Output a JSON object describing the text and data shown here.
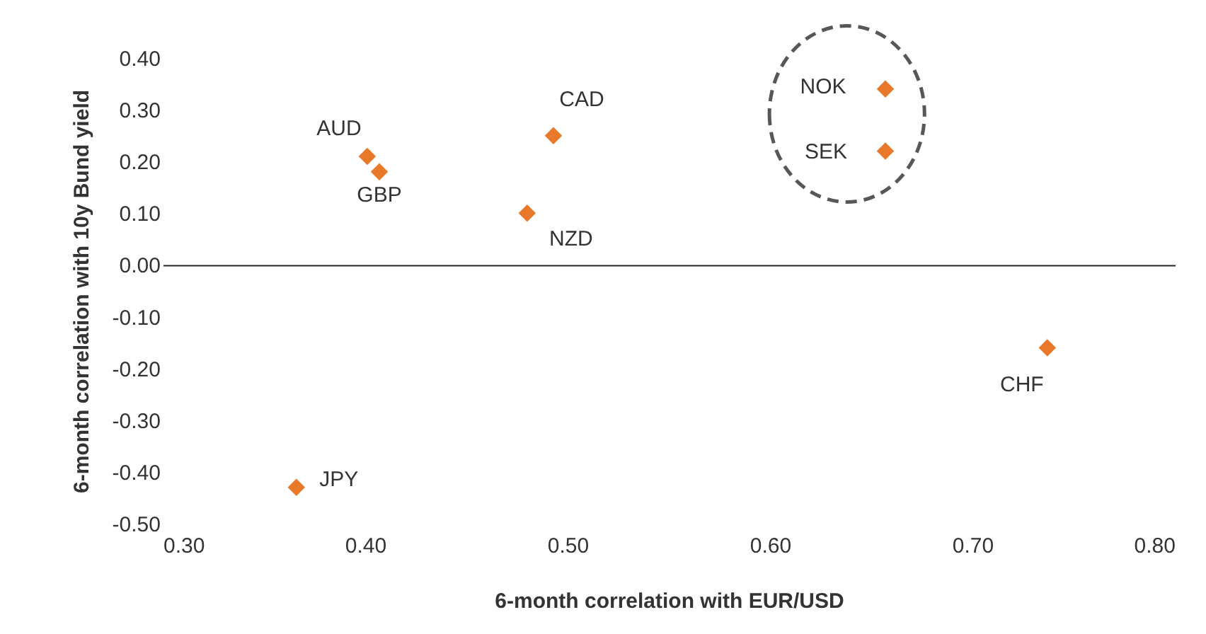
{
  "chart_data": {
    "type": "scatter",
    "xlabel": "6-month correlation with EUR/USD",
    "ylabel": "6-month correlation  with 10y Bund yield",
    "x": [
      0.401,
      0.407,
      0.493,
      0.48,
      0.657,
      0.657,
      0.737,
      0.366
    ],
    "series": [
      {
        "color": "#e8792b",
        "values": [
          0.21,
          0.18,
          0.25,
          0.1,
          0.34,
          0.22,
          -0.16,
          -0.43
        ]
      }
    ],
    "annotations": [
      {
        "text": "AUD",
        "x": 0.401,
        "y": 0.21
      },
      {
        "text": "GBP",
        "x": 0.407,
        "y": 0.18
      },
      {
        "text": "CAD",
        "x": 0.493,
        "y": 0.25
      },
      {
        "text": "NZD",
        "x": 0.48,
        "y": 0.1
      },
      {
        "text": "NOK",
        "x": 0.657,
        "y": 0.34
      },
      {
        "text": "SEK",
        "x": 0.657,
        "y": 0.22
      },
      {
        "text": "CHF",
        "x": 0.737,
        "y": -0.16
      },
      {
        "text": "JPY",
        "x": 0.366,
        "y": -0.43
      }
    ],
    "xlim": [
      0.3,
      0.8
    ],
    "xticks": [
      {
        "value": 0.3,
        "label": "0.30"
      },
      {
        "value": 0.4,
        "label": "0.40"
      },
      {
        "value": 0.5,
        "label": "0.50"
      },
      {
        "value": 0.6,
        "label": "0.60"
      },
      {
        "value": 0.7,
        "label": "0.70"
      },
      {
        "value": 0.8,
        "label": "0.80"
      }
    ],
    "ylim": [
      -0.5,
      0.4
    ],
    "yticks": [
      {
        "value": -0.5,
        "label": "-0.50"
      },
      {
        "value": -0.4,
        "label": "-0.40"
      },
      {
        "value": -0.3,
        "label": "-0.30"
      },
      {
        "value": -0.2,
        "label": "-0.20"
      },
      {
        "value": -0.1,
        "label": "-0.10"
      },
      {
        "value": 0,
        "label": "0.00"
      },
      {
        "value": 0.1,
        "label": "0.10"
      },
      {
        "value": 0.2,
        "label": "0.20"
      },
      {
        "value": 0.3,
        "label": "0.30"
      },
      {
        "value": 0.4,
        "label": "0.40"
      }
    ],
    "marker": "diamond"
  }
}
